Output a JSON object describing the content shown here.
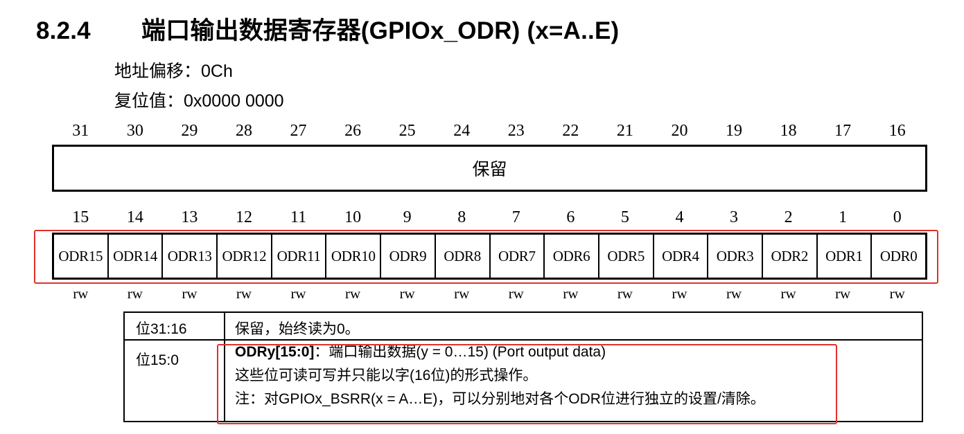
{
  "section": {
    "number": "8.2.4",
    "title": "端口输出数据寄存器(GPIOx_ODR) (x=A..E)"
  },
  "meta": {
    "offset": "地址偏移：0Ch",
    "reset": "复位值：0x0000 0000"
  },
  "bits_high": [
    "31",
    "30",
    "29",
    "28",
    "27",
    "26",
    "25",
    "24",
    "23",
    "22",
    "21",
    "20",
    "19",
    "18",
    "17",
    "16"
  ],
  "reserved_label": "保留",
  "bits_low": [
    "15",
    "14",
    "13",
    "12",
    "11",
    "10",
    "9",
    "8",
    "7",
    "6",
    "5",
    "4",
    "3",
    "2",
    "1",
    "0"
  ],
  "fields": [
    "ODR15",
    "ODR14",
    "ODR13",
    "ODR12",
    "ODR11",
    "ODR10",
    "ODR9",
    "ODR8",
    "ODR7",
    "ODR6",
    "ODR5",
    "ODR4",
    "ODR3",
    "ODR2",
    "ODR1",
    "ODR0"
  ],
  "access": [
    "rw",
    "rw",
    "rw",
    "rw",
    "rw",
    "rw",
    "rw",
    "rw",
    "rw",
    "rw",
    "rw",
    "rw",
    "rw",
    "rw",
    "rw",
    "rw"
  ],
  "table": {
    "rows": [
      {
        "bits": "位31:16",
        "text": "保留，始终读为0。"
      },
      {
        "bits": "位15:0",
        "field_name": "ODRy[15:0]",
        "field_desc": "：端口输出数据(y = 0…15) (Port output data)",
        "line2": "这些位可读可写并只能以字(16位)的形式操作。",
        "line3": "注：对GPIOx_BSRR(x = A…E)，可以分别地对各个ODR位进行独立的设置/清除。"
      }
    ]
  }
}
